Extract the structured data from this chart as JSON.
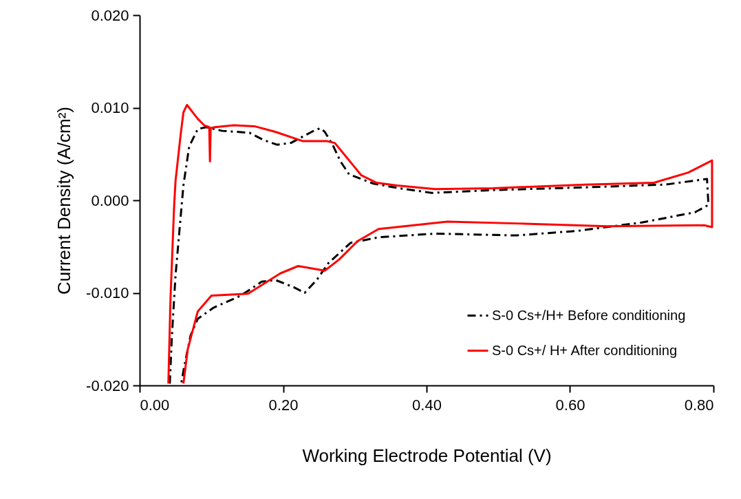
{
  "chart_data": {
    "type": "line",
    "xlabel": "Working Electrode Potential (V)",
    "ylabel": "Current Density (A/cm²)",
    "xlim": [
      0,
      0.8
    ],
    "ylim": [
      -0.02,
      0.02
    ],
    "xticks": [
      {
        "value": 0,
        "label": "0.00"
      },
      {
        "value": 0.2,
        "label": "0.20"
      },
      {
        "value": 0.4,
        "label": "0.40"
      },
      {
        "value": 0.6,
        "label": "0.60"
      },
      {
        "value": 0.8,
        "label": "0.80"
      }
    ],
    "yticks": [
      {
        "value": -0.02,
        "label": "-0.020"
      },
      {
        "value": -0.01,
        "label": "-0.010"
      },
      {
        "value": 0,
        "label": "0.000"
      },
      {
        "value": 0.01,
        "label": "0.010"
      },
      {
        "value": 0.02,
        "label": "0.020"
      }
    ],
    "grid": false,
    "legend": "bottom right",
    "marker": "none",
    "series": [
      {
        "name": "S-0 Cs+/H+ Before conditioning",
        "color": "#000000",
        "line_style": "dashed",
        "x": [
          0.042,
          0.045,
          0.05,
          0.057,
          0.061,
          0.069,
          0.081,
          0.093,
          0.115,
          0.153,
          0.173,
          0.192,
          0.211,
          0.24,
          0.252,
          0.258,
          0.269,
          0.28,
          0.292,
          0.326,
          0.362,
          0.407,
          0.493,
          0.621,
          0.733,
          0.791,
          0.793,
          0.774,
          0.7,
          0.611,
          0.525,
          0.412,
          0.333,
          0.294,
          0.263,
          0.247,
          0.23,
          0.215,
          0.189,
          0.17,
          0.141,
          0.103,
          0.081,
          0.071,
          0.062,
          0.058
        ],
        "values": [
          -0.0198,
          -0.0146,
          -0.0081,
          -0.0019,
          0.0016,
          0.0058,
          0.0077,
          0.0079,
          0.0075,
          0.0073,
          0.0065,
          0.006,
          0.0062,
          0.0074,
          0.0078,
          0.0074,
          0.006,
          0.0042,
          0.0028,
          0.0018,
          0.0013,
          0.0008,
          0.0011,
          0.0014,
          0.0017,
          0.0023,
          -0.0005,
          -0.0013,
          -0.0024,
          -0.0033,
          -0.0038,
          -0.0036,
          -0.004,
          -0.0046,
          -0.0068,
          -0.0086,
          -0.01,
          -0.0094,
          -0.0086,
          -0.0088,
          -0.0103,
          -0.0116,
          -0.0128,
          -0.0146,
          -0.018,
          -0.0198
        ]
      },
      {
        "name": "S-0 Cs+/ H+ After conditioning",
        "color": "#ff0000",
        "line_style": "solid",
        "x": [
          0.04,
          0.043,
          0.048,
          0.05,
          0.057,
          0.061,
          0.066,
          0.081,
          0.09,
          0.097,
          0.098,
          0.099,
          0.105,
          0.131,
          0.16,
          0.189,
          0.227,
          0.261,
          0.272,
          0.29,
          0.309,
          0.33,
          0.359,
          0.412,
          0.493,
          0.621,
          0.717,
          0.765,
          0.798,
          0.798,
          0.787,
          0.652,
          0.525,
          0.429,
          0.333,
          0.304,
          0.278,
          0.258,
          0.221,
          0.196,
          0.151,
          0.1,
          0.081,
          0.067,
          0.061
        ],
        "values": [
          -0.0198,
          -0.0106,
          -0.0007,
          0.0021,
          0.007,
          0.0095,
          0.0103,
          0.0088,
          0.0081,
          0.0079,
          0.0042,
          0.0078,
          0.0079,
          0.0081,
          0.008,
          0.0074,
          0.0064,
          0.0064,
          0.0062,
          0.0045,
          0.0027,
          0.0019,
          0.0016,
          0.0012,
          0.0013,
          0.0017,
          0.0019,
          0.003,
          0.0043,
          -0.0029,
          -0.0027,
          -0.0028,
          -0.0025,
          -0.0023,
          -0.0031,
          -0.0044,
          -0.0064,
          -0.0076,
          -0.0071,
          -0.0079,
          -0.0101,
          -0.0103,
          -0.012,
          -0.0161,
          -0.0198
        ]
      }
    ]
  }
}
